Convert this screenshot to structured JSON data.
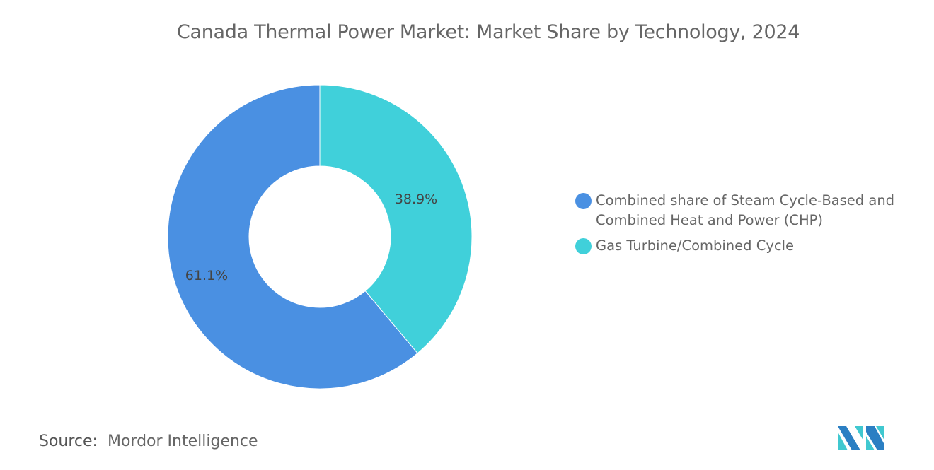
{
  "chart_data": {
    "type": "pie",
    "variant": "donut",
    "title": "Canada Thermal Power Market: Market Share by Technology, 2024",
    "categories": [
      "Gas Turbine/Combined Cycle",
      "Combined share of Steam Cycle-Based and Combined Heat and Power (CHP)"
    ],
    "values": [
      38.9,
      61.1
    ],
    "data_labels": [
      "38.9%",
      "61.1%"
    ],
    "colors": [
      "#40D0DA",
      "#4A90E2"
    ],
    "legend_placement": "right",
    "legend": [
      {
        "label": "Combined share of Steam Cycle-Based and Combined Heat and Power (CHP)",
        "color": "#4A90E2"
      },
      {
        "label": "Gas Turbine/Combined Cycle",
        "color": "#40D0DA"
      }
    ]
  },
  "source": {
    "label": "Source:",
    "value": "Mordor Intelligence"
  },
  "logo": {
    "name": "mordor-intelligence-logo",
    "colors": [
      "#2B7FC3",
      "#40C8D0"
    ]
  }
}
